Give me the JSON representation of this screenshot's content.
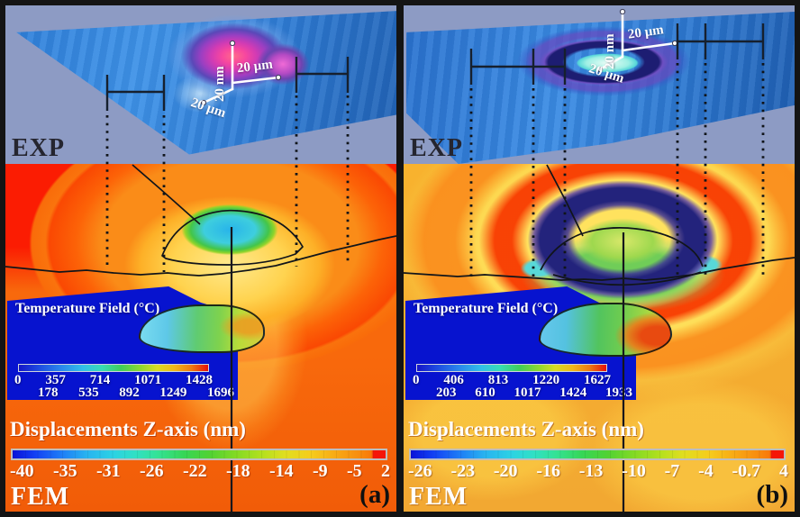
{
  "figure": {
    "panels": [
      {
        "id": "a",
        "tag": "(a)",
        "exp_label": "EXP",
        "fem_label": "FEM",
        "scalebar": {
          "z": "20 nm",
          "x": "20 µm",
          "y": "20 µm"
        },
        "displacement": {
          "title": "Displacements Z-axis (nm)",
          "ticks": [
            "-40",
            "-35",
            "-31",
            "-26",
            "-22",
            "-18",
            "-14",
            "-9",
            "-5",
            "2"
          ]
        },
        "temperature": {
          "title": "Temperature Field (°C)",
          "ticks_row1": [
            "0",
            "357",
            "714",
            "1071",
            "1428"
          ],
          "ticks_row2": [
            "178",
            "535",
            "892",
            "1249",
            "1696"
          ]
        }
      },
      {
        "id": "b",
        "tag": "(b)",
        "exp_label": "EXP",
        "fem_label": "FEM",
        "scalebar": {
          "z": "20 nm",
          "x": "20 µm",
          "y": "20 µm"
        },
        "displacement": {
          "title": "Displacements Z-axis (nm)",
          "ticks": [
            "-26",
            "-23",
            "-20",
            "-16",
            "-13",
            "-10",
            "-7",
            "-4",
            "-0.7",
            "4"
          ]
        },
        "temperature": {
          "title": "Temperature Field (°C)",
          "ticks_row1": [
            "0",
            "406",
            "813",
            "1220",
            "1627"
          ],
          "ticks_row2": [
            "203",
            "610",
            "1017",
            "1424",
            "1933"
          ]
        }
      }
    ]
  },
  "colors": {
    "exp_background": "#8d9bc4",
    "fem_a_base": "#f8690c",
    "fem_b_base": "#f8b22e",
    "inset_background": "#0713cf",
    "displacement_scale_min": "#0a12d8",
    "displacement_scale_max": "#f51508",
    "temperature_scale_min": "#1515c8",
    "temperature_scale_max": "#e81008"
  },
  "chart_data": [
    {
      "type": "heatmap",
      "panel": "a",
      "experiment_label": "EXP",
      "simulation_label": "FEM",
      "feature": "bump (protrusion) on surface",
      "displacement_colorbar": {
        "title": "Displacements Z-axis (nm)",
        "ticks": [
          -40,
          -35,
          -31,
          -26,
          -22,
          -18,
          -14,
          -9,
          -5,
          2
        ],
        "range": [
          -40,
          2
        ]
      },
      "temperature_scale": {
        "title": "Temperature Field (°C)",
        "ticks": [
          0,
          178,
          357,
          535,
          714,
          892,
          1071,
          1249,
          1428,
          1696
        ],
        "range": [
          0,
          1696
        ]
      },
      "scale_bar": {
        "z": "20 nm",
        "x": "20 µm",
        "y": "20 µm"
      }
    },
    {
      "type": "heatmap",
      "panel": "b",
      "experiment_label": "EXP",
      "simulation_label": "FEM",
      "feature": "crater (ring depression) on surface",
      "displacement_colorbar": {
        "title": "Displacements Z-axis (nm)",
        "ticks": [
          -26,
          -23,
          -20,
          -16,
          -13,
          -10,
          -7,
          -4,
          -0.7,
          4
        ],
        "range": [
          -26,
          4
        ]
      },
      "temperature_scale": {
        "title": "Temperature Field (°C)",
        "ticks": [
          0,
          203,
          406,
          610,
          813,
          1017,
          1220,
          1424,
          1627,
          1933
        ],
        "range": [
          0,
          1933
        ]
      },
      "scale_bar": {
        "z": "20 nm",
        "x": "20 µm",
        "y": "20 µm"
      }
    }
  ]
}
